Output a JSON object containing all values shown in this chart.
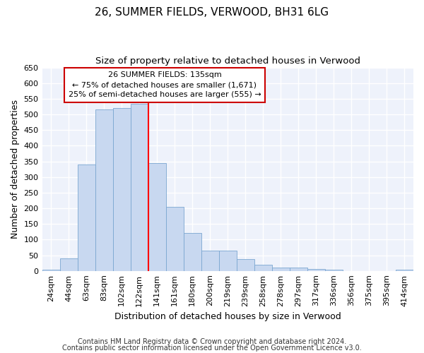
{
  "title1": "26, SUMMER FIELDS, VERWOOD, BH31 6LG",
  "title2": "Size of property relative to detached houses in Verwood",
  "xlabel": "Distribution of detached houses by size in Verwood",
  "ylabel": "Number of detached properties",
  "footer1": "Contains HM Land Registry data © Crown copyright and database right 2024.",
  "footer2": "Contains public sector information licensed under the Open Government Licence v3.0.",
  "annotation_line1": "26 SUMMER FIELDS: 135sqm",
  "annotation_line2": "← 75% of detached houses are smaller (1,671)",
  "annotation_line3": "25% of semi-detached houses are larger (555) →",
  "bin_labels": [
    "24sqm",
    "44sqm",
    "63sqm",
    "83sqm",
    "102sqm",
    "122sqm",
    "141sqm",
    "161sqm",
    "180sqm",
    "200sqm",
    "219sqm",
    "239sqm",
    "258sqm",
    "278sqm",
    "297sqm",
    "317sqm",
    "336sqm",
    "356sqm",
    "375sqm",
    "395sqm",
    "414sqm"
  ],
  "bar_values": [
    3,
    40,
    340,
    515,
    520,
    535,
    345,
    205,
    120,
    65,
    65,
    38,
    20,
    10,
    10,
    5,
    3,
    0,
    0,
    0,
    3
  ],
  "bar_color": "#c8d8f0",
  "bar_edge_color": "#7ba7d0",
  "red_line_x": 6.0,
  "ylim": [
    0,
    650
  ],
  "yticks": [
    0,
    50,
    100,
    150,
    200,
    250,
    300,
    350,
    400,
    450,
    500,
    550,
    600,
    650
  ],
  "bg_color": "#ffffff",
  "plot_bg_color": "#eef2fb",
  "grid_color": "#ffffff",
  "annotation_box_color": "#ffffff",
  "annotation_border_color": "#cc0000",
  "title1_fontsize": 11,
  "title2_fontsize": 9.5,
  "axis_label_fontsize": 9,
  "tick_fontsize": 8,
  "footer_fontsize": 7
}
